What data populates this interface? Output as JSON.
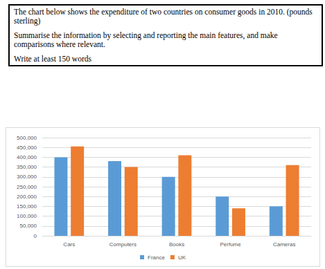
{
  "header": {
    "paragraphs": [
      "The chart below shows the expenditure of two countries on consumer goods in 2010. (pounds sterling)",
      "Summarise the information by selecting and reporting the main features, and make comparisons where relevant.",
      "Write at least 150 words"
    ]
  },
  "chart_data": {
    "type": "bar",
    "categories": [
      "Cars",
      "Computers",
      "Books",
      "Perfume",
      "Cameras"
    ],
    "series": [
      {
        "name": "France",
        "color": "#5b9bd5",
        "values": [
          400000,
          380000,
          300000,
          200000,
          150000
        ]
      },
      {
        "name": "UK",
        "color": "#ed7d31",
        "values": [
          455000,
          350000,
          410000,
          140000,
          360000
        ]
      }
    ],
    "ylim": [
      0,
      500000
    ],
    "yticks": [
      0,
      {
        "value": 50000,
        "label": "50,000"
      },
      {
        "value": 100000,
        "label": "100,000"
      },
      {
        "value": 150000,
        "label": "150,000"
      },
      {
        "value": 200000,
        "label": "200,000"
      },
      {
        "value": 250000,
        "label": "250,000"
      },
      {
        "value": 300000,
        "label": "300,000"
      },
      {
        "value": 350000,
        "label": "350,000"
      },
      {
        "value": 400000,
        "label": "400,000"
      },
      {
        "value": 450000,
        "label": "450,000"
      },
      {
        "value": 500000,
        "label": "500,000"
      }
    ],
    "grid": true,
    "legend": "bottom"
  }
}
